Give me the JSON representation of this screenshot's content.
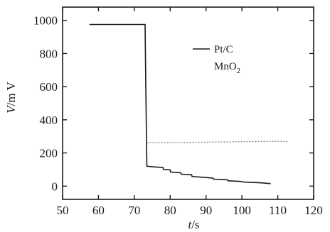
{
  "chart_data": {
    "type": "line",
    "title": "",
    "xlabel_italic": "t",
    "xlabel_unit": "/s",
    "ylabel_italic": "V",
    "ylabel_unit": "/m V",
    "xlim": [
      50,
      120
    ],
    "ylim": [
      -80,
      1080
    ],
    "xticks": [
      50,
      60,
      70,
      80,
      90,
      100,
      110,
      120
    ],
    "yticks": [
      0,
      200,
      400,
      600,
      800,
      1000
    ],
    "grid": false,
    "legend_position": "top-right",
    "series": [
      {
        "name": "Pt/C",
        "color": "#1a1a1a",
        "style": "solid",
        "x": [
          57.5,
          60,
          65,
          70,
          73,
          73.2,
          73.5,
          76,
          78,
          78.1,
          80,
          80.1,
          83,
          83.1,
          86,
          86.1,
          90,
          92,
          92.1,
          96,
          96.1,
          100,
          100.1,
          105,
          108
        ],
        "y": [
          975,
          975,
          975,
          975,
          975,
          600,
          120,
          115,
          112,
          100,
          98,
          85,
          80,
          72,
          68,
          58,
          52,
          48,
          42,
          38,
          32,
          28,
          25,
          20,
          15
        ]
      },
      {
        "name": "MnO",
        "name_subscript": "2",
        "color": "#888888",
        "style": "dotted",
        "x": [
          73.5,
          80,
          90,
          100,
          110,
          113
        ],
        "y": [
          262,
          262,
          265,
          268,
          270,
          268
        ]
      }
    ]
  }
}
